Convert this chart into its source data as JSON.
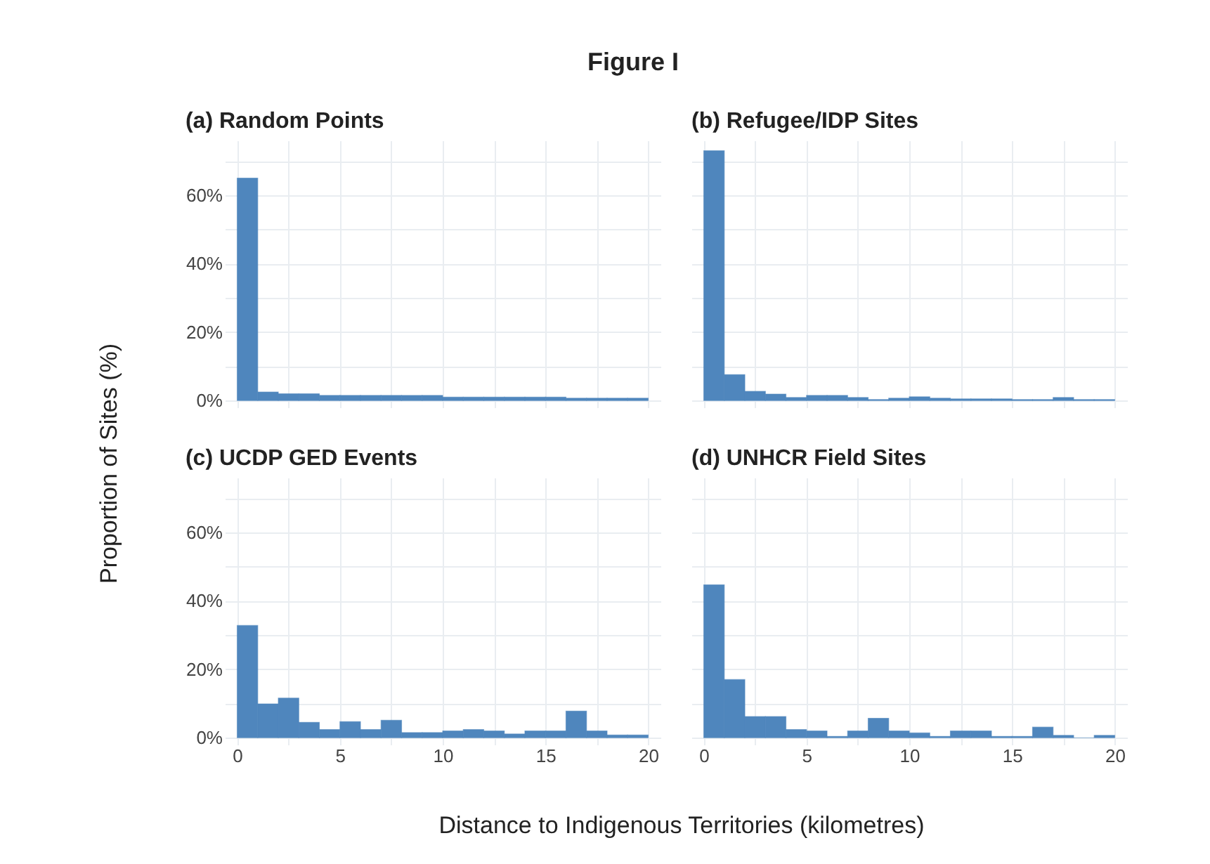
{
  "chart_data": [
    {
      "type": "histogram",
      "title": "(a) Random Points",
      "annotations": [
        "Figure I"
      ],
      "ylabel": "Proportion of Sites (%)",
      "color": "#4f86bd",
      "grid": true,
      "tick_labels": "y",
      "bins": [
        0,
        1,
        2,
        3,
        4,
        5,
        6,
        7,
        8,
        9,
        10,
        11,
        12,
        13,
        14,
        15,
        16,
        17,
        18,
        19,
        20
      ],
      "values": [
        65,
        2.5,
        2,
        2,
        1.5,
        1.5,
        1.5,
        1.5,
        1.5,
        1.5,
        1,
        1,
        1,
        1,
        1,
        1,
        0.7,
        0.7,
        0.7,
        0.7
      ],
      "xlim": [
        -0.6,
        20.6
      ],
      "ylim": [
        -2,
        76
      ],
      "xticks": [
        0,
        {
          "value": 2.5,
          "label": null
        },
        5,
        {
          "value": 7.5,
          "label": null
        },
        10,
        {
          "value": 12.5,
          "label": null
        },
        15,
        {
          "value": 17.5,
          "label": null
        },
        20
      ],
      "yticks": [
        {
          "value": 0,
          "label": "0%"
        },
        {
          "value": 10,
          "label": null
        },
        {
          "value": 20,
          "label": "20%"
        },
        {
          "value": 30,
          "label": null
        },
        {
          "value": 40,
          "label": "40%"
        },
        {
          "value": 50,
          "label": null
        },
        {
          "value": 60,
          "label": "60%"
        },
        {
          "value": 70,
          "label": null
        }
      ]
    },
    {
      "type": "histogram",
      "title": "(b) Refugee/IDP Sites",
      "color": "#4f86bd",
      "grid": true,
      "tick_labels": false,
      "bins": [
        0,
        1,
        2,
        3,
        4,
        5,
        6,
        7,
        8,
        9,
        10,
        11,
        12,
        13,
        14,
        15,
        16,
        17,
        18,
        19,
        20
      ],
      "values": [
        73,
        7.6,
        2.7,
        1.9,
        0.9,
        1.5,
        1.5,
        0.9,
        0.3,
        0.7,
        1.1,
        0.7,
        0.5,
        0.5,
        0.5,
        0.3,
        0.3,
        0.9,
        0.3,
        0.3
      ],
      "xlim": [
        -0.6,
        20.6
      ],
      "ylim": [
        -2,
        76
      ],
      "xticks": [
        0,
        {
          "value": 2.5,
          "label": null
        },
        5,
        {
          "value": 7.5,
          "label": null
        },
        10,
        {
          "value": 12.5,
          "label": null
        },
        15,
        {
          "value": 17.5,
          "label": null
        },
        20
      ],
      "yticks": [
        {
          "value": 0,
          "label": null
        },
        {
          "value": 10,
          "label": null
        },
        {
          "value": 20,
          "label": null
        },
        {
          "value": 30,
          "label": null
        },
        {
          "value": 40,
          "label": null
        },
        {
          "value": 50,
          "label": null
        },
        {
          "value": 60,
          "label": null
        },
        {
          "value": 70,
          "label": null
        }
      ]
    },
    {
      "type": "histogram",
      "title": "(c) UCDP GED Events",
      "xlabel": "Distance to Indigenous Territories (kilometres)",
      "color": "#4f86bd",
      "grid": true,
      "bins": [
        0,
        1,
        2,
        3,
        4,
        5,
        6,
        7,
        8,
        9,
        10,
        11,
        12,
        13,
        14,
        15,
        16,
        17,
        18,
        19,
        20
      ],
      "values": [
        32.8,
        9.9,
        11.6,
        4.5,
        2.4,
        4.7,
        2.4,
        5.1,
        1.5,
        1.5,
        2,
        2.4,
        2,
        1.1,
        2,
        2,
        7.8,
        2,
        0.8,
        0.8
      ],
      "xlim": [
        -0.6,
        20.6
      ],
      "ylim": [
        -2,
        76
      ],
      "xticks": [
        0,
        {
          "value": 2.5,
          "label": null
        },
        5,
        {
          "value": 7.5,
          "label": null
        },
        10,
        {
          "value": 12.5,
          "label": null
        },
        15,
        {
          "value": 17.5,
          "label": null
        },
        20
      ],
      "yticks": [
        {
          "value": 0,
          "label": "0%"
        },
        {
          "value": 10,
          "label": null
        },
        {
          "value": 20,
          "label": "20%"
        },
        {
          "value": 30,
          "label": null
        },
        {
          "value": 40,
          "label": "40%"
        },
        {
          "value": 50,
          "label": null
        },
        {
          "value": 60,
          "label": "60%"
        },
        {
          "value": 70,
          "label": null
        }
      ]
    },
    {
      "type": "histogram",
      "title": "(d) UNHCR Field Sites",
      "color": "#4f86bd",
      "grid": true,
      "tick_labels": "x",
      "bins": [
        0,
        1,
        2,
        3,
        4,
        5,
        6,
        7,
        8,
        9,
        10,
        11,
        12,
        13,
        14,
        15,
        16,
        17,
        18,
        19,
        20
      ],
      "values": [
        44.7,
        17,
        6.2,
        6.2,
        2.4,
        2,
        0.4,
        2,
        5.7,
        2,
        1.4,
        0.4,
        2,
        2,
        0.4,
        0.4,
        3.1,
        0.7,
        0,
        0.7
      ],
      "xlim": [
        -0.6,
        20.6
      ],
      "ylim": [
        -2,
        76
      ],
      "xticks": [
        0,
        {
          "value": 2.5,
          "label": null
        },
        5,
        {
          "value": 7.5,
          "label": null
        },
        10,
        {
          "value": 12.5,
          "label": null
        },
        15,
        {
          "value": 17.5,
          "label": null
        },
        20
      ],
      "yticks": [
        {
          "value": 0,
          "label": null
        },
        {
          "value": 10,
          "label": null
        },
        {
          "value": 20,
          "label": null
        },
        {
          "value": 30,
          "label": null
        },
        {
          "value": 40,
          "label": null
        },
        {
          "value": 50,
          "label": null
        },
        {
          "value": 60,
          "label": null
        },
        {
          "value": 70,
          "label": null
        }
      ]
    }
  ]
}
